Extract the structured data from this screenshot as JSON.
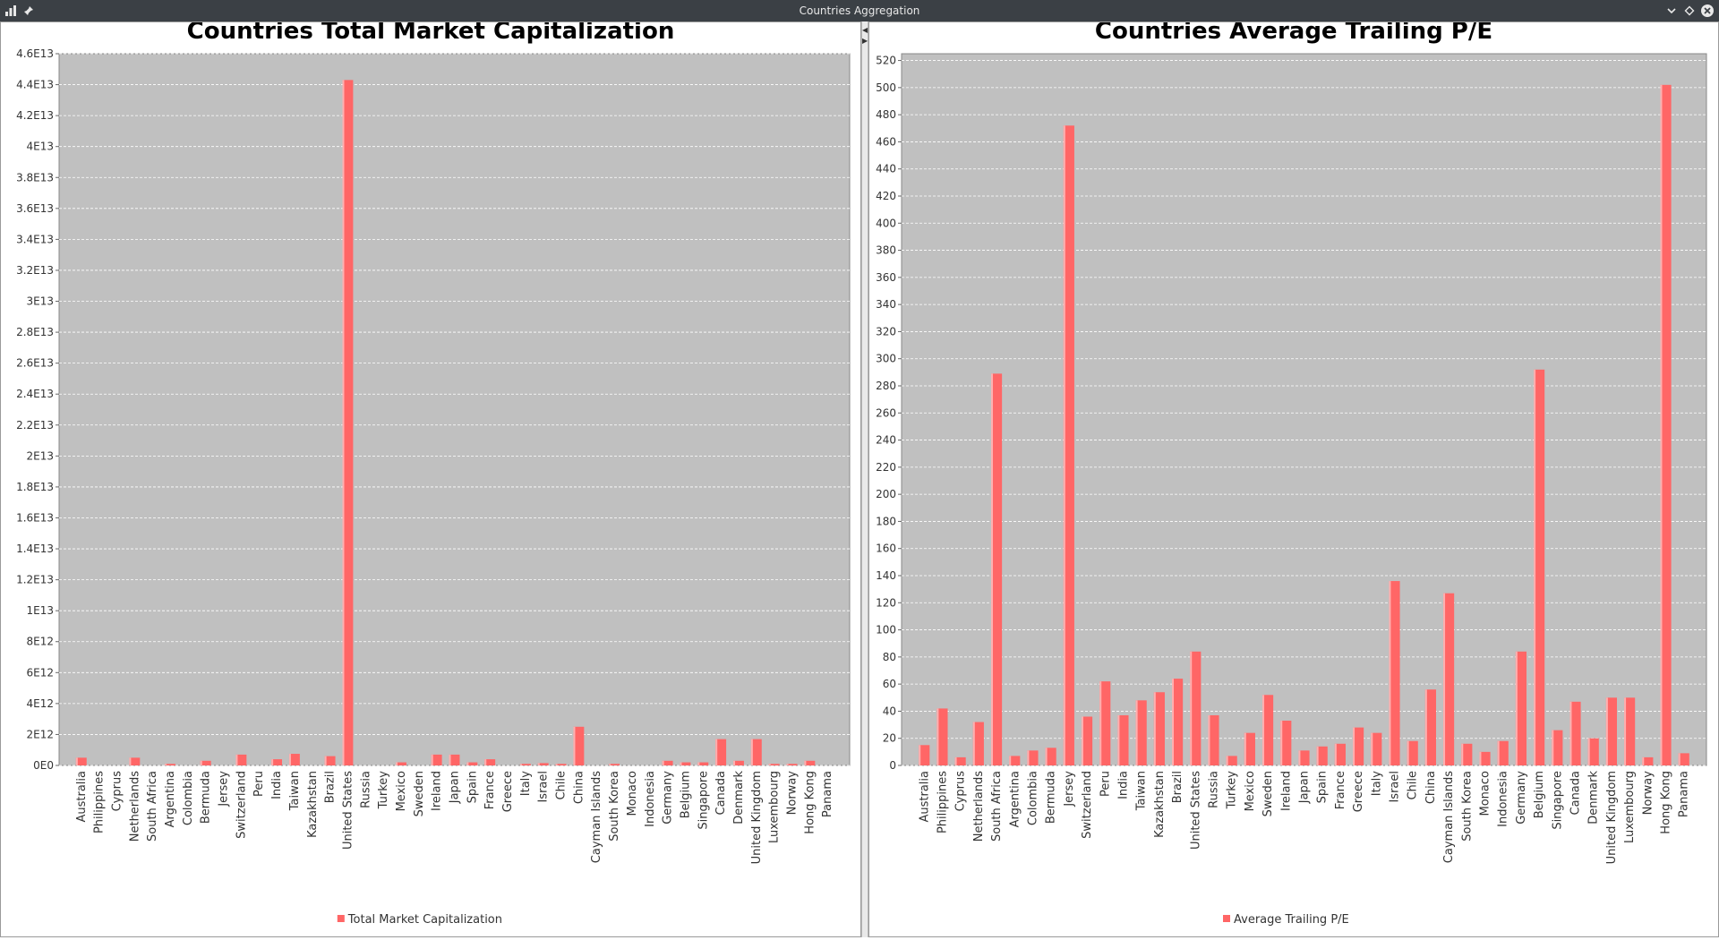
{
  "window": {
    "title": "Countries Aggregation",
    "icons": [
      "app-chart-icon",
      "pin-icon",
      "minimize-icon",
      "restore-icon",
      "close-icon"
    ]
  },
  "colors": {
    "plot_background": "#c0c0c0",
    "bar": "#ff6666",
    "bar_highlight": "#ffb0b0",
    "grid": "#ffffff",
    "titlebar": "#3b4045"
  },
  "chart_data": [
    {
      "type": "bar",
      "title": "Countries Total Market Capitalization",
      "series": [
        {
          "name": "Total Market Capitalization",
          "values": [
            500000000000.0,
            0,
            0,
            500000000000.0,
            0,
            100000000000.0,
            0,
            300000000000.0,
            0,
            700000000000.0,
            0,
            400000000000.0,
            750000000000.0,
            0,
            600000000000.0,
            44300000000000.0,
            0,
            0,
            200000000000.0,
            0,
            700000000000.0,
            700000000000.0,
            200000000000.0,
            400000000000.0,
            0,
            100000000000.0,
            150000000000.0,
            100000000000.0,
            2500000000000.0,
            0,
            100000000000.0,
            0,
            0,
            300000000000.0,
            200000000000.0,
            200000000000.0,
            1700000000000.0,
            300000000000.0,
            1700000000000.0,
            100000000000.0,
            100000000000.0,
            300000000000.0,
            0
          ]
        }
      ],
      "categories": [
        "Australia",
        "Philippines",
        "Cyprus",
        "Netherlands",
        "South Africa",
        "Argentina",
        "Colombia",
        "Bermuda",
        "Jersey",
        "Switzerland",
        "Peru",
        "India",
        "Taiwan",
        "Kazakhstan",
        "Brazil",
        "United States",
        "Russia",
        "Turkey",
        "Mexico",
        "Sweden",
        "Ireland",
        "Japan",
        "Spain",
        "France",
        "Greece",
        "Italy",
        "Israel",
        "Chile",
        "China",
        "Cayman Islands",
        "South Korea",
        "Monaco",
        "Indonesia",
        "Germany",
        "Belgium",
        "Singapore",
        "Canada",
        "Denmark",
        "United Kingdom",
        "Luxembourg",
        "Norway",
        "Hong Kong",
        "Panama"
      ],
      "ylim": [
        0,
        46000000000000.0
      ],
      "yticks": [
        0,
        2000000000000.0,
        4000000000000.0,
        6000000000000.0,
        8000000000000.0,
        10000000000000.0,
        12000000000000.0,
        14000000000000.0,
        16000000000000.0,
        18000000000000.0,
        20000000000000.0,
        22000000000000.0,
        24000000000000.0,
        26000000000000.0,
        28000000000000.0,
        30000000000000.0,
        32000000000000.0,
        34000000000000.0,
        36000000000000.0,
        38000000000000.0,
        40000000000000.0,
        42000000000000.0,
        44000000000000.0,
        46000000000000.0
      ],
      "ytick_labels": [
        "0E0",
        "2E12",
        "4E12",
        "6E12",
        "8E12",
        "1E13",
        "1.2E13",
        "1.4E13",
        "1.6E13",
        "1.8E13",
        "2E13",
        "2.2E13",
        "2.4E13",
        "2.6E13",
        "2.8E13",
        "3E13",
        "3.2E13",
        "3.4E13",
        "3.6E13",
        "3.8E13",
        "4E13",
        "4.2E13",
        "4.4E13",
        "4.6E13"
      ],
      "grid": true,
      "legend_position": "bottom"
    },
    {
      "type": "bar",
      "title": "Countries Average Trailing P/E",
      "series": [
        {
          "name": "Average Trailing P/E",
          "values": [
            15,
            42,
            6,
            32,
            289,
            7,
            11,
            13,
            472,
            36,
            62,
            37,
            48,
            54,
            64,
            84,
            37,
            7,
            24,
            52,
            33,
            11,
            14,
            16,
            28,
            24,
            136,
            18,
            56,
            127,
            16,
            10,
            18,
            84,
            292,
            26,
            47,
            20,
            50,
            50,
            6,
            502,
            9
          ]
        }
      ],
      "categories": [
        "Australia",
        "Philippines",
        "Cyprus",
        "Netherlands",
        "South Africa",
        "Argentina",
        "Colombia",
        "Bermuda",
        "Jersey",
        "Switzerland",
        "Peru",
        "India",
        "Taiwan",
        "Kazakhstan",
        "Brazil",
        "United States",
        "Russia",
        "Turkey",
        "Mexico",
        "Sweden",
        "Ireland",
        "Japan",
        "Spain",
        "France",
        "Greece",
        "Italy",
        "Israel",
        "Chile",
        "China",
        "Cayman Islands",
        "South Korea",
        "Monaco",
        "Indonesia",
        "Germany",
        "Belgium",
        "Singapore",
        "Canada",
        "Denmark",
        "United Kingdom",
        "Luxembourg",
        "Norway",
        "Hong Kong",
        "Panama"
      ],
      "ylim": [
        0,
        525
      ],
      "yticks": [
        0,
        20,
        40,
        60,
        80,
        100,
        120,
        140,
        160,
        180,
        200,
        220,
        240,
        260,
        280,
        300,
        320,
        340,
        360,
        380,
        400,
        420,
        440,
        460,
        480,
        500,
        520
      ],
      "ytick_labels": [
        "0",
        "20",
        "40",
        "60",
        "80",
        "100",
        "120",
        "140",
        "160",
        "180",
        "200",
        "220",
        "240",
        "260",
        "280",
        "300",
        "320",
        "340",
        "360",
        "380",
        "400",
        "420",
        "440",
        "460",
        "480",
        "500",
        "520"
      ],
      "grid": true,
      "legend_position": "bottom"
    }
  ]
}
